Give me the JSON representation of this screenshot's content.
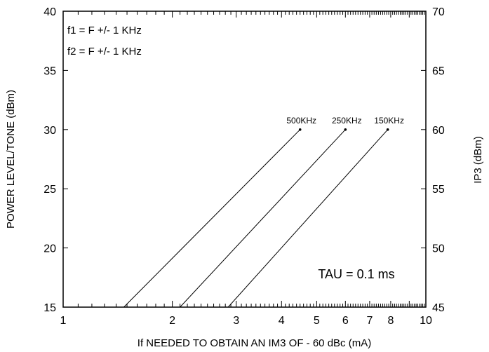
{
  "chart_data": {
    "type": "line",
    "xlabel": "If NEEDED TO OBTAIN AN IM3 OF - 60 dBc (mA)",
    "ylabel": "POWER LEVEL/TONE (dBm)",
    "y2label": "IP3  (dBm)",
    "xscale": "log",
    "xlim": [
      1,
      10
    ],
    "ylim": [
      15,
      40
    ],
    "y2lim": [
      45,
      70
    ],
    "xticks": [
      "1",
      "2",
      "3",
      "4",
      "5",
      "6",
      "7",
      "8",
      "10"
    ],
    "yticks": [
      "15",
      "20",
      "25",
      "30",
      "35",
      "40"
    ],
    "y2ticks": [
      "45",
      "50",
      "55",
      "60",
      "65",
      "70"
    ],
    "annotations": [
      "f1 = F +/- 1 KHz",
      "f2 = F +/- 1 KHz"
    ],
    "tau_label": "TAU  =  0.1  ms",
    "series": [
      {
        "name": "500KHz",
        "points": [
          [
            1.47,
            15
          ],
          [
            4.5,
            30
          ]
        ]
      },
      {
        "name": "250KHz",
        "points": [
          [
            2.1,
            15
          ],
          [
            6.0,
            30
          ]
        ]
      },
      {
        "name": "150KHz",
        "points": [
          [
            2.85,
            15
          ],
          [
            7.85,
            30
          ]
        ]
      }
    ]
  }
}
